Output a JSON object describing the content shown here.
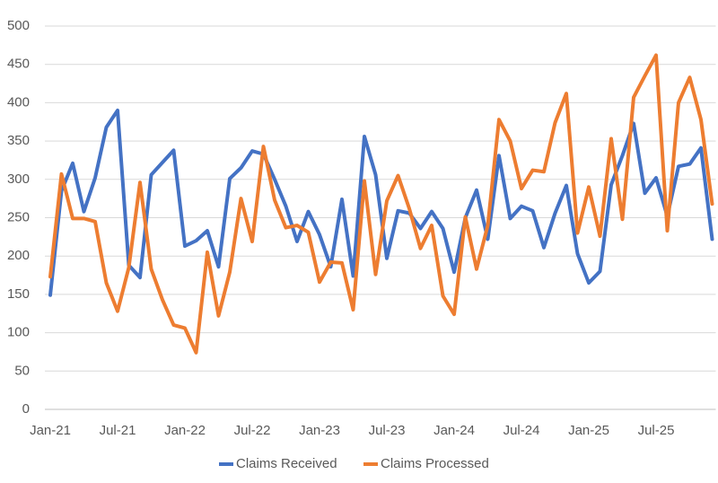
{
  "chart_data": {
    "type": "line",
    "categories": [
      "Jan-21",
      null,
      null,
      null,
      null,
      null,
      "Jul-21",
      null,
      null,
      null,
      null,
      null,
      "Jan-22",
      null,
      null,
      null,
      null,
      null,
      "Jul-22",
      null,
      null,
      null,
      null,
      null,
      "Jan-23",
      null,
      null,
      null,
      null,
      null,
      "Jul-23",
      null,
      null,
      null,
      null,
      null,
      "Jan-24",
      null,
      null,
      null,
      null,
      null,
      "Jul-24",
      null,
      null,
      null,
      null,
      null,
      "Jan-25",
      null,
      null,
      null,
      null,
      null,
      "Jul-25",
      null,
      null,
      null,
      null,
      null
    ],
    "series": [
      {
        "name": "Claims Received",
        "color": "#4472c4",
        "values": [
          149,
          285,
          321,
          258,
          302,
          368,
          390,
          188,
          172,
          306,
          322,
          338,
          213,
          220,
          233,
          186,
          301,
          315,
          337,
          333,
          300,
          265,
          219,
          258,
          228,
          186,
          274,
          174,
          356,
          306,
          197,
          259,
          256,
          236,
          258,
          236,
          179,
          250,
          286,
          222,
          331,
          249,
          265,
          259,
          211,
          256,
          292,
          203,
          165,
          180,
          293,
          331,
          373,
          282,
          302,
          252,
          317,
          320,
          341,
          222
        ]
      },
      {
        "name": "Claims Processed",
        "color": "#ed7d31",
        "values": [
          173,
          307,
          249,
          249,
          245,
          165,
          128,
          185,
          296,
          183,
          143,
          110,
          106,
          74,
          205,
          122,
          179,
          275,
          219,
          343,
          273,
          237,
          240,
          231,
          166,
          192,
          191,
          130,
          298,
          176,
          272,
          305,
          262,
          210,
          240,
          148,
          124,
          251,
          183,
          240,
          378,
          350,
          288,
          312,
          310,
          374,
          412,
          230,
          290,
          226,
          353,
          248,
          407,
          435,
          462,
          233,
          400,
          433,
          378,
          268
        ]
      }
    ],
    "ylim": [
      0,
      500
    ],
    "yticks": [
      0,
      50,
      100,
      150,
      200,
      250,
      300,
      350,
      400,
      450,
      500
    ],
    "grid": true,
    "legend": "bottom"
  }
}
